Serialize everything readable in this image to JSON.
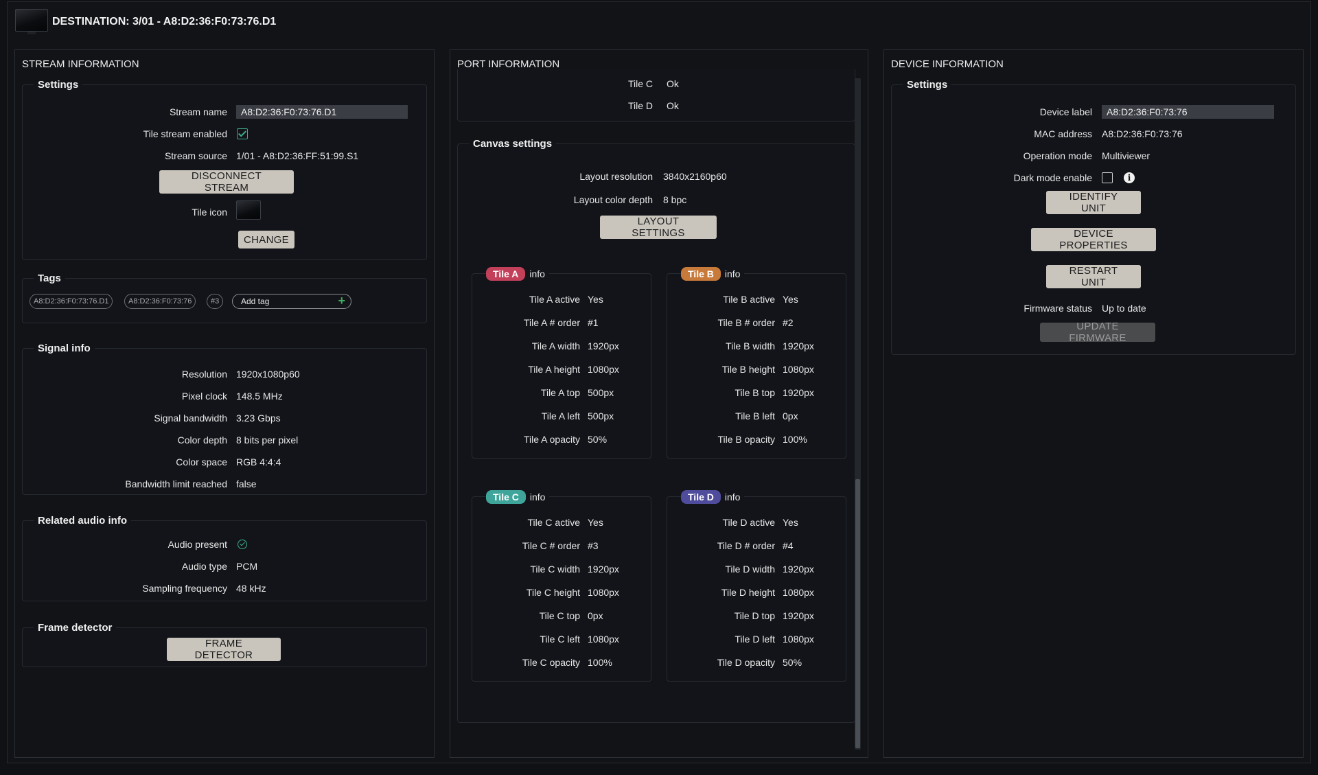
{
  "header": {
    "title": "DESTINATION: 3/01 - A8:D2:36:F0:73:76.D1"
  },
  "stream": {
    "panel_title": "STREAM INFORMATION",
    "settings": {
      "legend": "Settings",
      "stream_name_label": "Stream name",
      "stream_name_value": "A8:D2:36:F0:73:76.D1",
      "tile_stream_enabled_label": "Tile stream enabled",
      "tile_stream_enabled": true,
      "stream_source_label": "Stream source",
      "stream_source_value": "1/01 - A8:D2:36:FF:51:99.S1",
      "disconnect_label": "DISCONNECT STREAM",
      "tile_icon_label": "Tile icon",
      "change_label": "CHANGE"
    },
    "tags": {
      "legend": "Tags",
      "items": [
        "A8:D2:36:F0:73:76.D1",
        "A8:D2:36:F0:73:76",
        "#3"
      ],
      "add_tag_label": "Add tag"
    },
    "signal": {
      "legend": "Signal info",
      "rows": [
        {
          "label": "Resolution",
          "value": "1920x1080p60"
        },
        {
          "label": "Pixel clock",
          "value": "148.5 MHz"
        },
        {
          "label": "Signal bandwidth",
          "value": "3.23 Gbps"
        },
        {
          "label": "Color depth",
          "value": "8 bits per pixel"
        },
        {
          "label": "Color space",
          "value": "RGB 4:4:4"
        },
        {
          "label": "Bandwidth limit reached",
          "value": "false"
        }
      ]
    },
    "audio": {
      "legend": "Related audio info",
      "audio_present_label": "Audio present",
      "audio_present": true,
      "rows": [
        {
          "label": "Audio type",
          "value": "PCM"
        },
        {
          "label": "Sampling frequency",
          "value": "48 kHz"
        }
      ]
    },
    "frame": {
      "legend": "Frame detector",
      "button_label": "FRAME DETECTOR"
    }
  },
  "port": {
    "panel_title": "PORT INFORMATION",
    "status_rows": [
      {
        "label": "Tile C",
        "value": "Ok"
      },
      {
        "label": "Tile D",
        "value": "Ok"
      }
    ],
    "canvas": {
      "legend": "Canvas settings",
      "layout_resolution_label": "Layout resolution",
      "layout_resolution_value": "3840x2160p60",
      "layout_color_depth_label": "Layout color depth",
      "layout_color_depth_value": "8 bpc",
      "layout_settings_label": "LAYOUT SETTINGS"
    },
    "tiles": [
      {
        "badge": "Tile A",
        "info": "info",
        "color": "#c2405a",
        "rows": [
          {
            "label": "Tile A active",
            "value": "Yes"
          },
          {
            "label": "Tile A # order",
            "value": "#1"
          },
          {
            "label": "Tile A width",
            "value": "1920px"
          },
          {
            "label": "Tile A height",
            "value": "1080px"
          },
          {
            "label": "Tile A top",
            "value": "500px"
          },
          {
            "label": "Tile A left",
            "value": "500px"
          },
          {
            "label": "Tile A opacity",
            "value": "50%"
          }
        ]
      },
      {
        "badge": "Tile B",
        "info": "info",
        "color": "#c87a3a",
        "rows": [
          {
            "label": "Tile B active",
            "value": "Yes"
          },
          {
            "label": "Tile B # order",
            "value": "#2"
          },
          {
            "label": "Tile B width",
            "value": "1920px"
          },
          {
            "label": "Tile B height",
            "value": "1080px"
          },
          {
            "label": "Tile B top",
            "value": "1920px"
          },
          {
            "label": "Tile B left",
            "value": "0px"
          },
          {
            "label": "Tile B opacity",
            "value": "100%"
          }
        ]
      },
      {
        "badge": "Tile C",
        "info": "info",
        "color": "#3fa59a",
        "rows": [
          {
            "label": "Tile C active",
            "value": "Yes"
          },
          {
            "label": "Tile C # order",
            "value": "#3"
          },
          {
            "label": "Tile C width",
            "value": "1920px"
          },
          {
            "label": "Tile C height",
            "value": "1080px"
          },
          {
            "label": "Tile C top",
            "value": "0px"
          },
          {
            "label": "Tile C left",
            "value": "1080px"
          },
          {
            "label": "Tile C opacity",
            "value": "100%"
          }
        ]
      },
      {
        "badge": "Tile D",
        "info": "info",
        "color": "#4f4c9c",
        "rows": [
          {
            "label": "Tile D active",
            "value": "Yes"
          },
          {
            "label": "Tile D # order",
            "value": "#4"
          },
          {
            "label": "Tile D width",
            "value": "1920px"
          },
          {
            "label": "Tile D height",
            "value": "1080px"
          },
          {
            "label": "Tile D top",
            "value": "1920px"
          },
          {
            "label": "Tile D left",
            "value": "1080px"
          },
          {
            "label": "Tile D opacity",
            "value": "50%"
          }
        ]
      }
    ]
  },
  "device": {
    "panel_title": "DEVICE INFORMATION",
    "legend": "Settings",
    "device_label_label": "Device label",
    "device_label_value": "A8:D2:36:F0:73:76",
    "mac_label": "MAC address",
    "mac_value": "A8:D2:36:F0:73:76",
    "operation_mode_label": "Operation mode",
    "operation_mode_value": "Multiviewer",
    "dark_mode_label": "Dark mode enable",
    "dark_mode_enabled": false,
    "identify_label": "IDENTIFY UNIT",
    "properties_label": "DEVICE PROPERTIES",
    "restart_label": "RESTART UNIT",
    "firmware_status_label": "Firmware status",
    "firmware_status_value": "Up to date",
    "update_firmware_label": "UPDATE FIRMWARE"
  }
}
